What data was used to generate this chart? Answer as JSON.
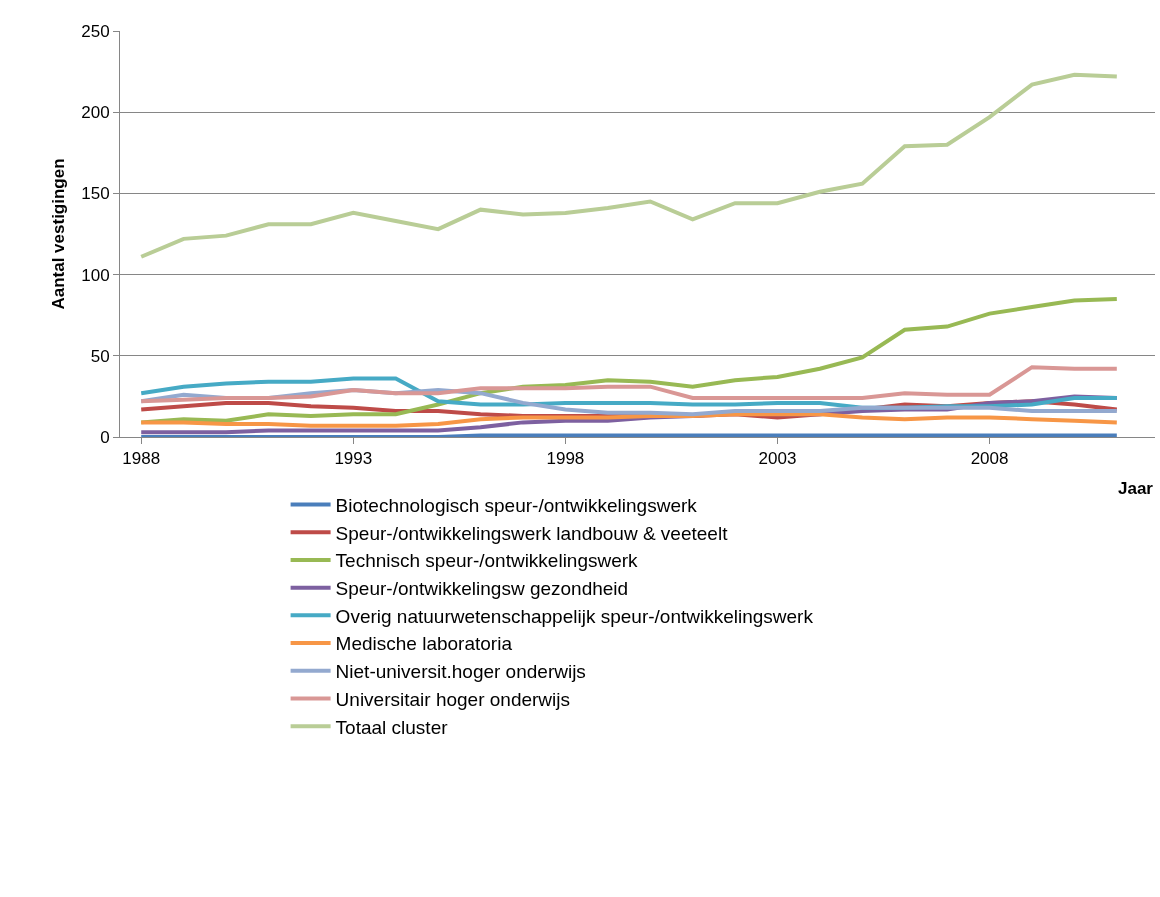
{
  "chart_data": {
    "type": "line",
    "ylabel": "Aantal vestigingen",
    "xlabel": "Jaar",
    "x": [
      1988,
      1989,
      1990,
      1991,
      1992,
      1993,
      1994,
      1995,
      1996,
      1997,
      1998,
      1999,
      2000,
      2001,
      2002,
      2003,
      2004,
      2005,
      2006,
      2007,
      2008,
      2009,
      2010,
      2011
    ],
    "xlim": [
      1987.5,
      2011.9
    ],
    "xticks": [
      1988,
      1993,
      1998,
      2003,
      2008
    ],
    "ylim": [
      0,
      250
    ],
    "yticks": [
      0,
      50,
      100,
      150,
      200,
      250
    ],
    "grid": "y",
    "legend": "bottom",
    "marker": "none",
    "line_style": "solid",
    "series": [
      {
        "name": "Biotechnologisch speur-/ontwikkelingswerk",
        "color": "#4a7ebb",
        "values": [
          0,
          0,
          0,
          0,
          0,
          0,
          0,
          0,
          1,
          1,
          1,
          1,
          1,
          1,
          1,
          1,
          1,
          1,
          1,
          1,
          1,
          1,
          1,
          1
        ]
      },
      {
        "name": "Speur-/ontwikkelingswerk landbouw & veeteelt",
        "color": "#be4b48",
        "values": [
          17,
          19,
          21,
          21,
          19,
          18,
          16,
          16,
          14,
          13,
          13,
          13,
          13,
          13,
          14,
          12,
          14,
          17,
          20,
          19,
          21,
          22,
          20,
          17
        ]
      },
      {
        "name": "Technisch speur-/ontwikkelingswerk",
        "color": "#98b954",
        "values": [
          9,
          11,
          10,
          14,
          13,
          14,
          14,
          20,
          27,
          31,
          32,
          35,
          34,
          31,
          35,
          37,
          42,
          49,
          66,
          68,
          76,
          80,
          84,
          85
        ]
      },
      {
        "name": "Speur-/ontwikkelingsw gezondheid",
        "color": "#7d60a0",
        "values": [
          3,
          3,
          3,
          4,
          4,
          4,
          4,
          4,
          6,
          9,
          10,
          10,
          12,
          13,
          15,
          14,
          14,
          16,
          17,
          17,
          21,
          22,
          25,
          24
        ]
      },
      {
        "name": "Overig natuurwetenschappelijk speur-/ontwikkelingswerk",
        "color": "#46aac5",
        "values": [
          27,
          31,
          33,
          34,
          34,
          36,
          36,
          22,
          20,
          20,
          21,
          21,
          21,
          20,
          20,
          21,
          21,
          18,
          18,
          19,
          19,
          20,
          24,
          24
        ]
      },
      {
        "name": "Medische laboratoria",
        "color": "#f79646",
        "values": [
          9,
          9,
          8,
          8,
          7,
          7,
          7,
          8,
          11,
          12,
          12,
          12,
          13,
          13,
          14,
          14,
          14,
          12,
          11,
          12,
          12,
          11,
          10,
          9
        ]
      },
      {
        "name": "Niet-universit.hoger onderwijs",
        "color": "#93a9cf",
        "values": [
          22,
          26,
          24,
          24,
          27,
          29,
          27,
          29,
          27,
          21,
          17,
          15,
          15,
          14,
          16,
          16,
          16,
          18,
          18,
          18,
          18,
          16,
          16,
          16
        ]
      },
      {
        "name": "Universitair hoger onderwijs",
        "color": "#d99795",
        "values": [
          22,
          23,
          24,
          24,
          25,
          29,
          27,
          27,
          30,
          30,
          30,
          31,
          31,
          24,
          24,
          24,
          24,
          24,
          27,
          26,
          26,
          43,
          42,
          42
        ]
      },
      {
        "name": "Totaal cluster",
        "color": "#b9cd96",
        "values": [
          111,
          122,
          124,
          131,
          131,
          138,
          133,
          128,
          140,
          137,
          138,
          141,
          145,
          134,
          144,
          144,
          151,
          156,
          179,
          180,
          197,
          217,
          223,
          222
        ]
      }
    ]
  }
}
